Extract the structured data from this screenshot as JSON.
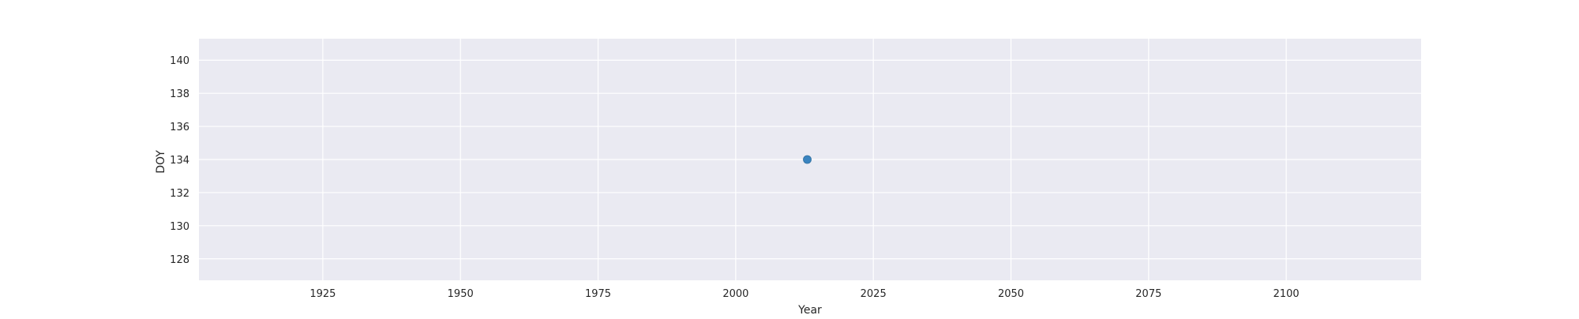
{
  "chart_data": {
    "type": "scatter",
    "title": "",
    "xlabel": "Year",
    "ylabel": "DOY",
    "x_ticks": [
      1925,
      1950,
      1975,
      2000,
      2025,
      2050,
      2075,
      2100
    ],
    "y_ticks": [
      128,
      130,
      132,
      134,
      136,
      138,
      140
    ],
    "xlim": [
      1902.5,
      2124.5
    ],
    "ylim": [
      126.7,
      141.3
    ],
    "grid": true,
    "series": [
      {
        "x": [
          2013
        ],
        "y": [
          134
        ],
        "color": "#3a84c0"
      }
    ],
    "colors": {
      "plot_background": "#eaeaf2",
      "grid": "#ffffff",
      "marker_edge": "#2f6f9f"
    }
  }
}
